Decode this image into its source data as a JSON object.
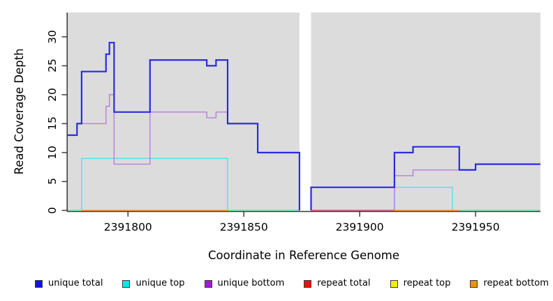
{
  "axes": {
    "x_title": "Coordinate in Reference Genome",
    "y_title": "Read Coverage Depth",
    "x_ticks": [
      2391800,
      2391850,
      2391900,
      2391950
    ],
    "y_ticks": [
      0,
      5,
      10,
      15,
      20,
      25,
      30
    ],
    "axis_color": "#333333"
  },
  "legend": [
    {
      "label": "unique total",
      "color": "#1212E8"
    },
    {
      "label": "unique top",
      "color": "#00E8E8"
    },
    {
      "label": "unique bottom",
      "color": "#A21AD1"
    },
    {
      "label": "repeat total",
      "color": "#E81111"
    },
    {
      "label": "repeat top",
      "color": "#F0F000"
    },
    {
      "label": "repeat bottom",
      "color": "#F09010"
    }
  ],
  "chart_data": {
    "type": "line",
    "subtype": "step-coverage",
    "title": "",
    "xlabel": "Coordinate in Reference Genome",
    "ylabel": "Read Coverage Depth",
    "xlim": [
      2391774,
      2391978
    ],
    "ylim": [
      0,
      34.2
    ],
    "grid": false,
    "plot_bg": "#DCDCDC",
    "gap": {
      "from": 2391874,
      "to": 2391879,
      "color": "#FFFFFF"
    },
    "legend_position": "bottom",
    "series": [
      {
        "name": "repeat top",
        "color": "#F0F000",
        "width": 1.4,
        "in_legend": true,
        "parts": []
      },
      {
        "name": "unique top",
        "color": "#4DE3EA",
        "width": 1.4,
        "in_legend": true,
        "parts": [
          [
            [
              2391774,
              0
            ],
            [
              2391780,
              9
            ],
            [
              2391843,
              0
            ],
            [
              2391874,
              0
            ]
          ],
          [
            [
              2391879,
              0
            ],
            [
              2391915,
              4
            ],
            [
              2391940,
              0
            ],
            [
              2391978,
              0
            ]
          ]
        ]
      },
      {
        "name": "unique bottom",
        "color": "#B87CDF",
        "width": 1.4,
        "in_legend": true,
        "parts": [
          [
            [
              2391774,
              13
            ],
            [
              2391778,
              15
            ],
            [
              2391790.5,
              18
            ],
            [
              2391792,
              20
            ],
            [
              2391794,
              8
            ],
            [
              2391809.5,
              17
            ],
            [
              2391834,
              16
            ],
            [
              2391838,
              17
            ],
            [
              2391843,
              15
            ],
            [
              2391856,
              10
            ],
            [
              2391874,
              0
            ]
          ],
          [
            [
              2391879,
              0
            ],
            [
              2391915,
              6
            ],
            [
              2391923,
              7
            ],
            [
              2391950,
              8
            ],
            [
              2391978,
              8
            ]
          ]
        ]
      },
      {
        "name": "zero-baseline",
        "color": "#8FCE96",
        "width": 1.4,
        "in_legend": false,
        "parts": [
          [
            [
              2391774,
              0
            ],
            [
              2391780,
              0
            ]
          ],
          [
            [
              2391843,
              0
            ],
            [
              2391874,
              0
            ]
          ],
          [
            [
              2391943,
              0
            ],
            [
              2391978,
              0
            ]
          ]
        ]
      },
      {
        "name": "repeat bottom",
        "color": "#FF8C1E",
        "width": 1.4,
        "in_legend": true,
        "parts": [
          [
            [
              2391780,
              0
            ],
            [
              2391843,
              0
            ]
          ],
          [
            [
              2391915,
              0
            ],
            [
              2391943,
              0
            ]
          ]
        ]
      },
      {
        "name": "repeat total",
        "color": "#D8506B",
        "width": 1.4,
        "in_legend": true,
        "parts": [
          [
            [
              2391879,
              0
            ],
            [
              2391915,
              0
            ]
          ]
        ]
      },
      {
        "name": "unique total",
        "color": "#2B2BE0",
        "width": 2.2,
        "in_legend": true,
        "parts": [
          [
            [
              2391774,
              13
            ],
            [
              2391778,
              15
            ],
            [
              2391780,
              24
            ],
            [
              2391790.5,
              27
            ],
            [
              2391792,
              29
            ],
            [
              2391794,
              17
            ],
            [
              2391809.5,
              26
            ],
            [
              2391834,
              25
            ],
            [
              2391838,
              26
            ],
            [
              2391843,
              15
            ],
            [
              2391856,
              10
            ],
            [
              2391874,
              0
            ]
          ],
          [
            [
              2391879,
              0
            ],
            [
              2391879,
              4
            ],
            [
              2391915,
              10
            ],
            [
              2391923,
              11
            ],
            [
              2391943,
              7
            ],
            [
              2391950,
              8
            ],
            [
              2391978,
              8
            ]
          ]
        ]
      }
    ]
  }
}
